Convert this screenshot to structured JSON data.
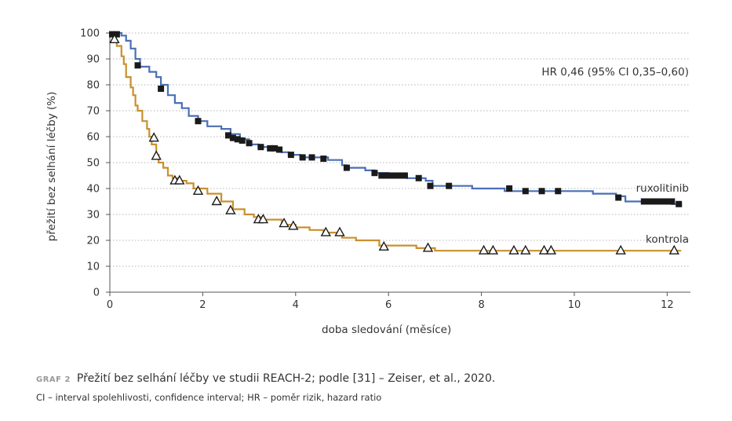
{
  "chart_data": {
    "type": "line",
    "subtype": "kaplan-meier",
    "xlabel": "doba sledování (měsíce)",
    "ylabel": "přežití bez selhání léčby (%)",
    "xlim": [
      0,
      12.5
    ],
    "ylim": [
      0,
      100
    ],
    "xticks": [
      0,
      2,
      4,
      6,
      8,
      10,
      12
    ],
    "yticks": [
      0,
      10,
      20,
      30,
      40,
      50,
      60,
      70,
      80,
      90,
      100
    ],
    "grid": "horizontal dotted",
    "annotation": "HR 0,46 (95% CI 0,35–0,60)",
    "series": [
      {
        "name": "ruxolitinib",
        "color": "#4a6fb5",
        "marker": "square",
        "steps": [
          [
            0,
            100
          ],
          [
            0.25,
            99
          ],
          [
            0.35,
            97
          ],
          [
            0.45,
            94
          ],
          [
            0.55,
            90
          ],
          [
            0.65,
            87
          ],
          [
            0.85,
            85
          ],
          [
            1.0,
            83
          ],
          [
            1.1,
            80
          ],
          [
            1.25,
            76
          ],
          [
            1.4,
            73
          ],
          [
            1.55,
            71
          ],
          [
            1.7,
            68
          ],
          [
            1.9,
            66
          ],
          [
            2.1,
            64
          ],
          [
            2.4,
            63
          ],
          [
            2.6,
            61
          ],
          [
            2.8,
            59
          ],
          [
            3.0,
            57
          ],
          [
            3.2,
            56
          ],
          [
            3.5,
            55
          ],
          [
            3.7,
            54
          ],
          [
            3.85,
            53
          ],
          [
            4.1,
            52
          ],
          [
            4.7,
            51
          ],
          [
            5.0,
            49
          ],
          [
            5.1,
            48
          ],
          [
            5.5,
            47
          ],
          [
            5.7,
            46
          ],
          [
            6.0,
            45
          ],
          [
            6.4,
            44
          ],
          [
            6.8,
            43
          ],
          [
            6.95,
            41
          ],
          [
            7.8,
            40
          ],
          [
            8.5,
            39
          ],
          [
            10.4,
            38
          ],
          [
            10.9,
            37
          ],
          [
            11.1,
            35
          ],
          [
            12.1,
            34
          ],
          [
            12.3,
            33
          ]
        ],
        "censored": [
          [
            0.05,
            99.5
          ],
          [
            0.15,
            99.5
          ],
          [
            0.6,
            87.5
          ],
          [
            1.1,
            78.5
          ],
          [
            1.9,
            66
          ],
          [
            2.55,
            60.5
          ],
          [
            2.65,
            59.5
          ],
          [
            2.75,
            59
          ],
          [
            2.85,
            58.5
          ],
          [
            3.0,
            57.5
          ],
          [
            3.25,
            56
          ],
          [
            3.45,
            55.5
          ],
          [
            3.55,
            55.5
          ],
          [
            3.65,
            55
          ],
          [
            3.9,
            53
          ],
          [
            4.15,
            52
          ],
          [
            4.35,
            52
          ],
          [
            4.6,
            51.5
          ],
          [
            5.1,
            48
          ],
          [
            5.7,
            46
          ],
          [
            5.85,
            45
          ],
          [
            5.95,
            45
          ],
          [
            6.05,
            45
          ],
          [
            6.15,
            45
          ],
          [
            6.25,
            45
          ],
          [
            6.35,
            45
          ],
          [
            6.65,
            44
          ],
          [
            6.9,
            41
          ],
          [
            7.3,
            41
          ],
          [
            8.6,
            40
          ],
          [
            8.95,
            39
          ],
          [
            9.3,
            39
          ],
          [
            9.65,
            39
          ],
          [
            10.95,
            36.5
          ],
          [
            11.5,
            35
          ],
          [
            11.6,
            35
          ],
          [
            11.7,
            35
          ],
          [
            11.8,
            35
          ],
          [
            11.9,
            35
          ],
          [
            12.0,
            35
          ],
          [
            12.1,
            35
          ],
          [
            12.25,
            34
          ]
        ]
      },
      {
        "name": "kontrola",
        "color": "#c8902e",
        "marker": "triangle",
        "steps": [
          [
            0,
            100
          ],
          [
            0.08,
            97
          ],
          [
            0.15,
            95
          ],
          [
            0.25,
            91
          ],
          [
            0.3,
            88
          ],
          [
            0.35,
            83
          ],
          [
            0.45,
            79
          ],
          [
            0.5,
            76
          ],
          [
            0.55,
            72
          ],
          [
            0.6,
            70
          ],
          [
            0.7,
            66
          ],
          [
            0.8,
            63
          ],
          [
            0.85,
            60
          ],
          [
            0.9,
            57
          ],
          [
            1.0,
            53
          ],
          [
            1.05,
            50
          ],
          [
            1.15,
            48
          ],
          [
            1.25,
            45
          ],
          [
            1.35,
            44
          ],
          [
            1.45,
            43
          ],
          [
            1.65,
            42
          ],
          [
            1.8,
            40
          ],
          [
            2.1,
            38
          ],
          [
            2.4,
            35
          ],
          [
            2.65,
            32
          ],
          [
            2.9,
            30
          ],
          [
            3.1,
            29
          ],
          [
            3.3,
            28
          ],
          [
            3.7,
            26
          ],
          [
            4.0,
            25
          ],
          [
            4.3,
            24
          ],
          [
            4.6,
            23
          ],
          [
            5.0,
            21
          ],
          [
            5.3,
            20
          ],
          [
            5.8,
            18
          ],
          [
            6.6,
            17
          ],
          [
            7.0,
            16
          ],
          [
            12.3,
            16
          ]
        ],
        "censored": [
          [
            0.1,
            97.5
          ],
          [
            0.95,
            59.5
          ],
          [
            1.0,
            52.5
          ],
          [
            1.4,
            43
          ],
          [
            1.5,
            43
          ],
          [
            1.9,
            39
          ],
          [
            2.3,
            35
          ],
          [
            2.6,
            31.5
          ],
          [
            3.2,
            28
          ],
          [
            3.3,
            28
          ],
          [
            3.75,
            26.5
          ],
          [
            3.95,
            25.5
          ],
          [
            4.65,
            23
          ],
          [
            4.95,
            23
          ],
          [
            5.9,
            17.5
          ],
          [
            6.85,
            17
          ],
          [
            8.05,
            16
          ],
          [
            8.25,
            16
          ],
          [
            8.7,
            16
          ],
          [
            8.95,
            16
          ],
          [
            9.35,
            16
          ],
          [
            9.5,
            16
          ],
          [
            11.0,
            16
          ],
          [
            12.15,
            16
          ]
        ]
      }
    ]
  },
  "caption": {
    "label": "GRAF 2",
    "text": "Přežití bez selhání léčby ve studii REACH-2; podle [31] – Zeiser, et al., 2020.",
    "footnote": "CI – interval spolehlivosti, confidence interval; HR – poměr rizik, hazard ratio"
  }
}
